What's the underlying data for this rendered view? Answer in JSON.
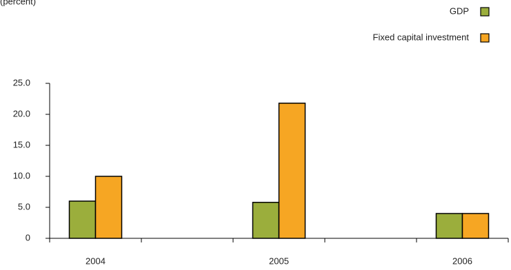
{
  "chart_data": {
    "type": "bar",
    "y_label": "(percent)",
    "categories": [
      "2004",
      "2005",
      "2006"
    ],
    "series": [
      {
        "name": "GDP",
        "color": "#9bae3c",
        "values": [
          6.0,
          5.8,
          4.0
        ]
      },
      {
        "name": "Fixed capital investment",
        "color": "#f6a623",
        "values": [
          10.0,
          21.8,
          4.0
        ]
      }
    ],
    "ylim": [
      0,
      25
    ],
    "yticks": [
      0,
      {
        "value": 5,
        "label": "5.0"
      },
      {
        "value": 10,
        "label": "10.0"
      },
      {
        "value": 15,
        "label": "15.0"
      },
      {
        "value": 20,
        "label": "20.0"
      },
      {
        "value": 25,
        "label": "25.0"
      }
    ],
    "legend": "top-right"
  }
}
